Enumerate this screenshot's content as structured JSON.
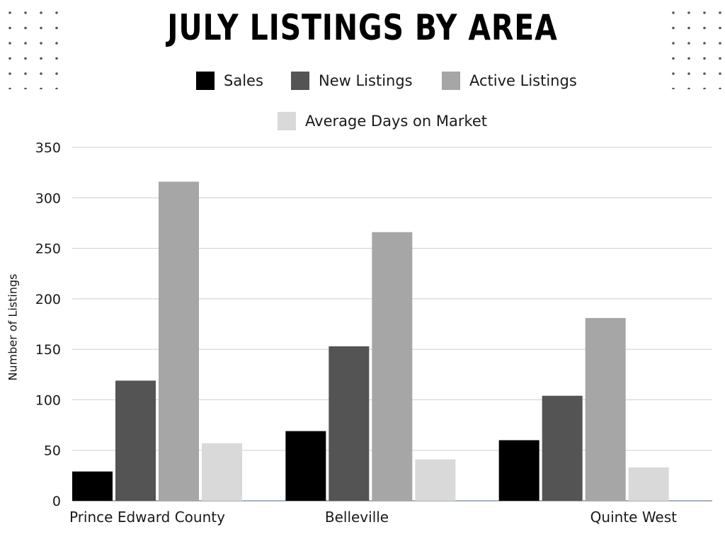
{
  "chart_data": {
    "type": "bar",
    "title": "JULY LISTINGS BY AREA",
    "ylabel": "Number of Listings",
    "xlabel": "",
    "ylim": [
      0,
      350
    ],
    "yticks": [
      0,
      50,
      100,
      150,
      200,
      250,
      300,
      350
    ],
    "grid": true,
    "legend_position": "top",
    "categories": [
      "Prince Edward County",
      "Belleville",
      "Quinte West"
    ],
    "series": [
      {
        "name": "Sales",
        "color": "#000000",
        "values": [
          29,
          69,
          60
        ]
      },
      {
        "name": "New Listings",
        "color": "#545454",
        "values": [
          119,
          153,
          104
        ]
      },
      {
        "name": "Active Listings",
        "color": "#a6a6a6",
        "values": [
          316,
          266,
          181
        ]
      },
      {
        "name": "Average Days on Market",
        "color": "#d9d9d9",
        "values": [
          57,
          41,
          33
        ]
      }
    ]
  }
}
